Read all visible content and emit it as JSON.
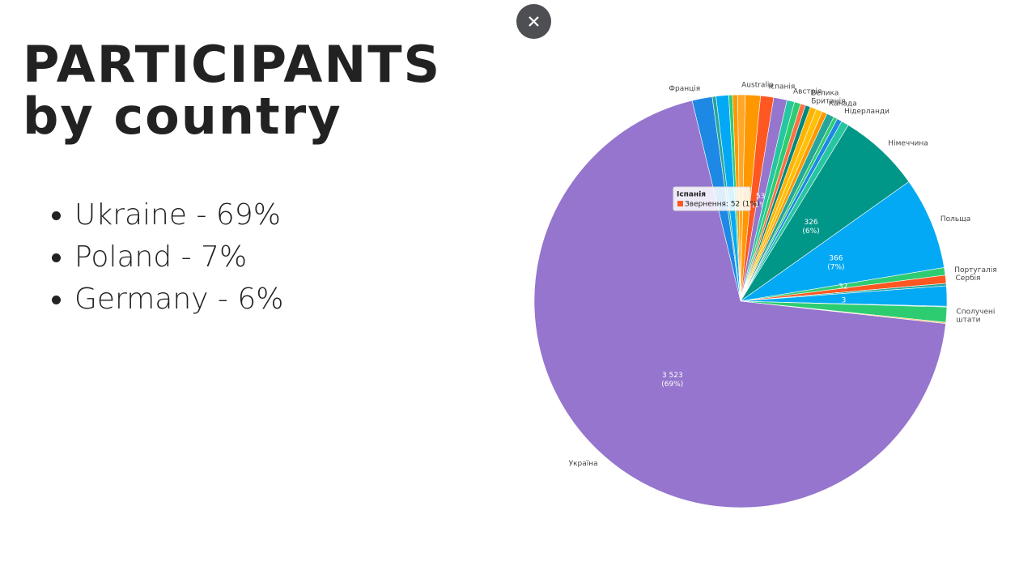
{
  "slide": {
    "title_lines": [
      "PARTICIPANTS",
      "by country"
    ],
    "bullets": [
      "Ukraine - 69%",
      "Poland - 7%",
      "Germany - 6%"
    ]
  },
  "chart_data": {
    "type": "pie",
    "categories": [
      "Франція",
      null,
      null,
      null,
      null,
      "Australia",
      null,
      "Іспанія",
      null,
      "Австрія",
      null,
      null,
      "Велика Британія",
      null,
      null,
      "Канада",
      null,
      null,
      "Нідерланди",
      null,
      "Німеччина",
      "Польща",
      "Португалія",
      "Сербія",
      null,
      null,
      null,
      "Сполучені штати",
      null,
      "Україна"
    ],
    "values": [
      80,
      15,
      50,
      15,
      20,
      30,
      60,
      52,
      53,
      30,
      25,
      20,
      20,
      25,
      25,
      20,
      30,
      15,
      20,
      30,
      326,
      366,
      30,
      32,
      10,
      80,
      3,
      60,
      5,
      3523
    ],
    "value_labels": [
      null,
      null,
      null,
      null,
      null,
      null,
      null,
      null,
      "53\n(1%)",
      null,
      null,
      null,
      null,
      null,
      null,
      null,
      null,
      null,
      null,
      null,
      "326\n(6%)",
      "366\n(7%)",
      null,
      "32\n(1%)",
      null,
      null,
      "3\n(0%)",
      null,
      null,
      "3 523\n(69%)"
    ],
    "colors": [
      "#1e88e5",
      "#26a69a",
      "#03a9f4",
      "#2ecc71",
      "#ff9800",
      "#ffa726",
      "#ff9800",
      "#ff5722",
      "#9575cd",
      "#26c6a0",
      "#2ecc71",
      "#ff7043",
      "#00897b",
      "#ffb300",
      "#ffc107",
      "#ff9800",
      "#26a69a",
      "#2ecc71",
      "#1e88e5",
      "#26c6a0",
      "#009688",
      "#03a9f4",
      "#2ecc71",
      "#ff5722",
      "#26a69a",
      "#03a9f4",
      "#26c6a0",
      "#2ecc71",
      "#ffb74d",
      "#9575cd"
    ],
    "tooltip": {
      "title": "Іспанія",
      "text": "Звернення: 52 (1%)"
    }
  }
}
